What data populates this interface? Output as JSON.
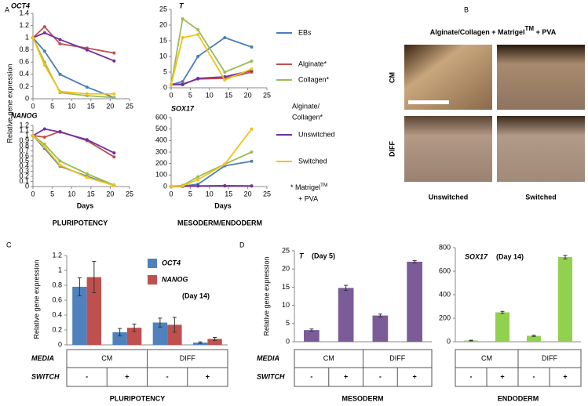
{
  "chart_data": [
    {
      "type": "line",
      "label": "A",
      "ylabel": "Relative gene expression",
      "xlabel": "Days",
      "footers": [
        "PLURIPOTENCY",
        "MESODERM/ENDODERM"
      ],
      "x": [
        0,
        3,
        7,
        14,
        21
      ],
      "xlim": [
        0,
        25
      ],
      "xticks": [
        0,
        5,
        10,
        15,
        20,
        25
      ],
      "series": [
        {
          "name": "EBs",
          "color": "#4a7ebb"
        },
        {
          "name": "Alginate*",
          "color": "#c0504d"
        },
        {
          "name": "Collagen*",
          "color": "#9bbb59"
        },
        {
          "name": "Unswitched",
          "color": "#7030a0"
        },
        {
          "name": "Switched",
          "color": "#f2c314"
        }
      ],
      "legend_title": [
        "Alginate/",
        "Collagen*"
      ],
      "note": [
        "* Matrigel",
        "TM",
        "+ PVA"
      ],
      "subplots": [
        {
          "title": "OCT4",
          "ylim": [
            0,
            1.4
          ],
          "yticks": [
            0,
            0.2,
            0.4,
            0.6,
            0.8,
            1,
            1.2,
            1.4
          ],
          "values": [
            [
              1,
              0.78,
              0.4,
              0.19,
              0.02
            ],
            [
              1,
              1.18,
              0.9,
              0.83,
              0.75
            ],
            [
              1,
              0.6,
              0.1,
              0.05,
              0.02
            ],
            [
              1,
              1.08,
              0.97,
              0.8,
              0.62
            ],
            [
              1,
              0.55,
              0.12,
              0.08,
              0.08
            ]
          ]
        },
        {
          "title": "T",
          "ylim": [
            0,
            25
          ],
          "yticks": [
            0,
            5,
            10,
            15,
            20,
            25
          ],
          "values": [
            [
              1,
              2,
              10,
              16,
              13
            ],
            [
              1,
              1.2,
              2.8,
              3,
              5
            ],
            [
              1,
              22,
              18.5,
              5,
              8.5
            ],
            [
              1,
              1,
              3,
              3.5,
              5.5
            ],
            [
              1,
              16,
              17,
              2.5,
              6
            ]
          ]
        },
        {
          "title": "NANOG",
          "ylim": [
            0,
            1.2
          ],
          "yticks": [
            0,
            0.1,
            0.2,
            0.3,
            0.4,
            0.5,
            0.6,
            0.7,
            0.8,
            0.9,
            1,
            1.1,
            1.2
          ],
          "values": [
            [
              1,
              0.75,
              0.4,
              0.2,
              0.02
            ],
            [
              1,
              0.97,
              1.08,
              0.9,
              0.58
            ],
            [
              1,
              0.83,
              0.5,
              0.25,
              0.03
            ],
            [
              1,
              1.13,
              1.07,
              0.92,
              0.66
            ],
            [
              1,
              0.78,
              0.42,
              0.18,
              0.02
            ]
          ]
        },
        {
          "title": "SOX17",
          "ylim": [
            0,
            600
          ],
          "yticks": [
            0,
            100,
            200,
            300,
            400,
            500,
            600
          ],
          "values": [
            [
              1,
              3,
              20,
              180,
              220
            ],
            [
              1,
              2,
              5,
              8,
              5
            ],
            [
              1,
              10,
              85,
              195,
              300
            ],
            [
              1,
              2,
              5,
              5,
              5
            ],
            [
              1,
              5,
              60,
              195,
              500
            ]
          ]
        }
      ]
    },
    {
      "type": "image-grid",
      "label": "B",
      "title": [
        "Alginate/Collagen + Matrigel",
        "TM",
        " + PVA"
      ],
      "rows": [
        "CM",
        "DIFF"
      ],
      "columns": [
        "Unswitched",
        "Switched"
      ]
    },
    {
      "type": "bar",
      "label": "C",
      "ylabel": "Relative gene expression",
      "annotation": "(Day 14)",
      "ylim": [
        0,
        1.2
      ],
      "yticks": [
        0,
        0.2,
        0.4,
        0.6,
        0.8,
        1,
        1.2
      ],
      "categories": [
        "-",
        "+",
        "-",
        "+"
      ],
      "media": [
        "CM",
        "DIFF"
      ],
      "row_labels": [
        "MEDIA",
        "SWITCH"
      ],
      "series": [
        {
          "name": "OCT4",
          "color": "#4f81bd",
          "values": [
            0.78,
            0.17,
            0.3,
            0.03
          ],
          "errors": [
            0.12,
            0.05,
            0.06,
            0.01
          ]
        },
        {
          "name": "NANOG",
          "color": "#c0504d",
          "values": [
            0.91,
            0.23,
            0.27,
            0.08
          ],
          "errors": [
            0.21,
            0.05,
            0.1,
            0.02
          ]
        }
      ],
      "footer": "PLURIPOTENCY"
    },
    {
      "type": "bar",
      "label": "D",
      "title": "T",
      "annotation": "(Day 5)",
      "ylabel": "Relative gene expression",
      "ylim": [
        0,
        25
      ],
      "yticks": [
        0,
        5,
        10,
        15,
        20,
        25
      ],
      "categories": [
        "-",
        "+",
        "-",
        "+"
      ],
      "media": [
        "CM",
        "DIFF"
      ],
      "row_labels": [
        "MEDIA",
        "SWITCH"
      ],
      "series": [
        {
          "color": "#7b5c98",
          "values": [
            3.2,
            14.8,
            7.2,
            22
          ],
          "errors": [
            0.3,
            0.7,
            0.4,
            0.3
          ]
        }
      ],
      "footer": "MESODERM"
    },
    {
      "type": "bar",
      "title": "SOX17",
      "annotation": "(Day 14)",
      "ylim": [
        0,
        800
      ],
      "yticks": [
        0,
        200,
        400,
        600,
        800
      ],
      "categories": [
        "-",
        "+",
        "-",
        "+"
      ],
      "media": [
        "CM",
        "DIFF"
      ],
      "series": [
        {
          "color": "#92d050",
          "values": [
            10,
            250,
            50,
            720
          ],
          "errors": [
            3,
            8,
            5,
            15
          ]
        }
      ],
      "footer": "ENDODERM"
    }
  ]
}
